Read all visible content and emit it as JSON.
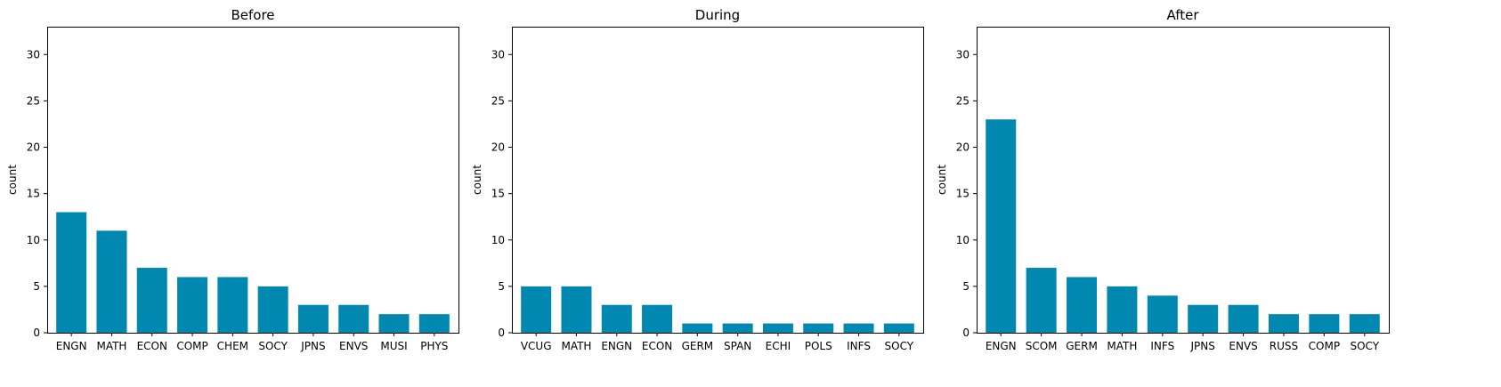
{
  "colors": {
    "bar": "#0088b0",
    "axis": "#000000",
    "background": "#ffffff"
  },
  "chart_data": [
    {
      "type": "bar",
      "title": "Before",
      "xlabel": "",
      "ylabel": "count",
      "ylim": [
        0,
        33
      ],
      "yticks": [
        0,
        5,
        10,
        15,
        20,
        25,
        30
      ],
      "grid": false,
      "categories": [
        "ENGN",
        "MATH",
        "ECON",
        "COMP",
        "CHEM",
        "SOCY",
        "JPNS",
        "ENVS",
        "MUSI",
        "PHYS"
      ],
      "values": [
        13,
        11,
        7,
        6,
        6,
        5,
        3,
        3,
        2,
        2
      ]
    },
    {
      "type": "bar",
      "title": "During",
      "xlabel": "",
      "ylabel": "count",
      "ylim": [
        0,
        33
      ],
      "yticks": [
        0,
        5,
        10,
        15,
        20,
        25,
        30
      ],
      "grid": false,
      "categories": [
        "VCUG",
        "MATH",
        "ENGN",
        "ECON",
        "GERM",
        "SPAN",
        "ECHI",
        "POLS",
        "INFS",
        "SOCY"
      ],
      "values": [
        5,
        5,
        3,
        3,
        1,
        1,
        1,
        1,
        1,
        1
      ]
    },
    {
      "type": "bar",
      "title": "After",
      "xlabel": "",
      "ylabel": "count",
      "ylim": [
        0,
        33
      ],
      "yticks": [
        0,
        5,
        10,
        15,
        20,
        25,
        30
      ],
      "grid": false,
      "categories": [
        "ENGN",
        "SCOM",
        "GERM",
        "MATH",
        "INFS",
        "JPNS",
        "ENVS",
        "RUSS",
        "COMP",
        "SOCY"
      ],
      "values": [
        23,
        7,
        6,
        5,
        4,
        3,
        3,
        2,
        2,
        2
      ]
    }
  ]
}
